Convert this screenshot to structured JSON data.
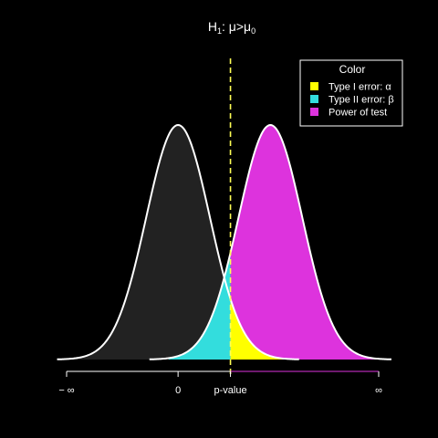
{
  "chart_data": {
    "type": "area",
    "title": {
      "main": "H",
      "main_sub": "1",
      "rest": ": μ>μ",
      "rest_sub": "0"
    },
    "x_ticks": [
      {
        "label": "− ∞",
        "x": -3.5
      },
      {
        "label": "0",
        "x": 0
      },
      {
        "label": "p-value",
        "x": 1.645
      },
      {
        "label": "∞",
        "x": 6.3
      }
    ],
    "xlim": [
      -3.5,
      6.3
    ],
    "ylim": [
      0,
      0.4
    ],
    "critical_value": 1.645,
    "distributions": [
      {
        "name": "null",
        "mean": 0,
        "sd": 1,
        "fill": "#222222",
        "stroke": "#ffffff"
      },
      {
        "name": "alternative",
        "mean": 2.9,
        "sd": 1,
        "fill": "#dd33dd",
        "stroke": "#ffffff"
      }
    ],
    "colors": {
      "type1": "#ffff00",
      "type2": "#33dddd",
      "power": "#dd33dd",
      "null_fill": "#222222",
      "axis_right": "#dd33dd",
      "vline": "#ffff55"
    },
    "legend": {
      "title": "Color",
      "placement": "top-right",
      "items": [
        {
          "label": "Type I error: α",
          "color": "#ffff00"
        },
        {
          "label": "Type II error: β",
          "color": "#33dddd"
        },
        {
          "label": "Power of test",
          "color": "#dd33dd"
        }
      ]
    }
  }
}
